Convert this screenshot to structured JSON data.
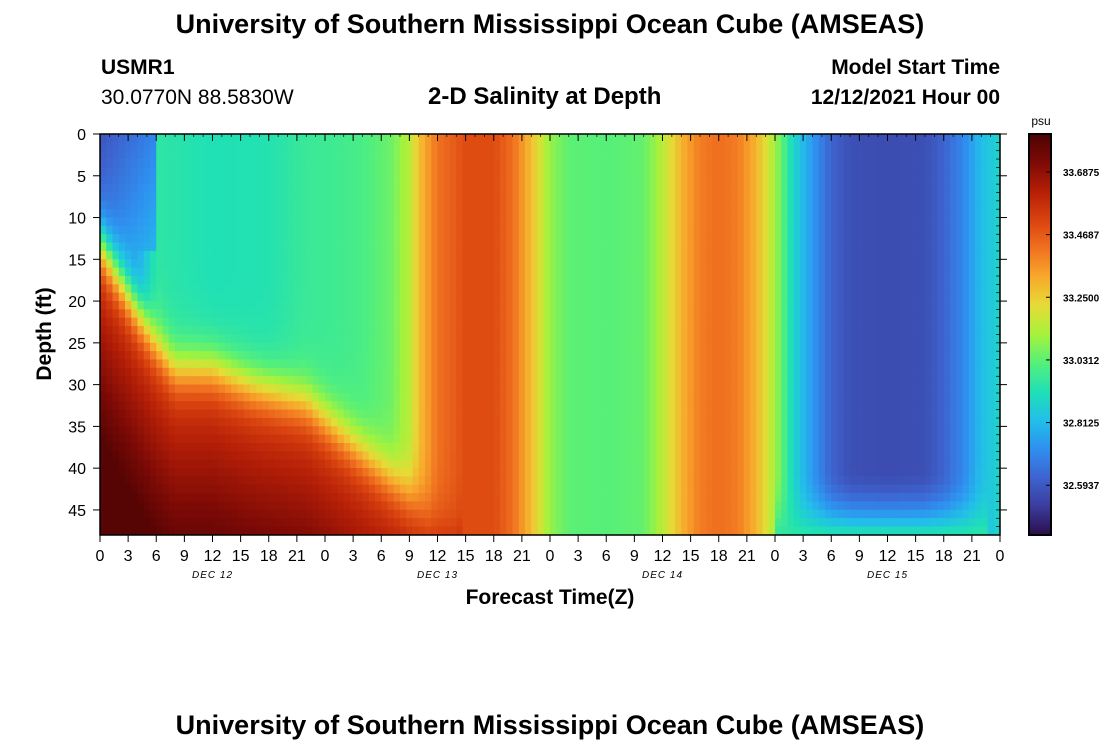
{
  "page": {
    "title": "University of Southern Mississippi Ocean Cube (AMSEAS)",
    "title_repeat": "University of Southern Mississippi Ocean Cube (AMSEAS)"
  },
  "station": {
    "id": "USMR1",
    "coords": "30.0770N  88.5830W"
  },
  "plot_title": "2-D Salinity at Depth",
  "model": {
    "label": "Model Start Time",
    "value": "12/12/2021 Hour 00"
  },
  "chart_data": {
    "type": "heatmap",
    "title": "2-D Salinity at Depth",
    "xlabel": "Forecast Time(Z)",
    "ylabel": "Depth (ft)",
    "units": "psu",
    "x_range_hours": [
      0,
      96
    ],
    "y_range_ft": [
      0,
      48
    ],
    "x_tick_labels": [
      "0",
      "3",
      "6",
      "9",
      "12",
      "15",
      "18",
      "21",
      "0",
      "3",
      "6",
      "9",
      "12",
      "15",
      "18",
      "21",
      "0",
      "3",
      "6",
      "9",
      "12",
      "15",
      "18",
      "21",
      "0",
      "3",
      "6",
      "9",
      "12",
      "15",
      "18",
      "21",
      "0"
    ],
    "y_ticks": [
      0,
      5,
      10,
      15,
      20,
      25,
      30,
      35,
      40,
      45
    ],
    "y_tick_labels": [
      "0",
      "5",
      "10",
      "15",
      "20",
      "25",
      "30",
      "35",
      "40",
      "45"
    ],
    "day_labels": [
      {
        "text": "DEC 12",
        "hour": 12
      },
      {
        "text": "DEC 13",
        "hour": 36
      },
      {
        "text": "DEC 14",
        "hour": 60
      },
      {
        "text": "DEC 15",
        "hour": 84
      }
    ],
    "colorbar": {
      "min": 32.42,
      "max": 33.82,
      "ticks": [
        33.6875,
        33.4687,
        33.25,
        33.0312,
        32.8125,
        32.5937
      ],
      "tick_labels": [
        "33.6875",
        "33.4687",
        "33.2500",
        "33.0312",
        "32.8125",
        "32.5937"
      ],
      "colors": [
        "#2a0f4a",
        "#3a3c9c",
        "#3e63cf",
        "#2f8ff0",
        "#22bfe9",
        "#1fe0b6",
        "#55f07a",
        "#a5f23c",
        "#e5dc36",
        "#f8a92c",
        "#f07220",
        "#d9420f",
        "#b51f07",
        "#7d0a06",
        "#4c0303"
      ]
    },
    "surface_salinity_by_hour": [
      [
        0,
        32.7
      ],
      [
        4,
        32.75
      ],
      [
        6,
        32.95
      ],
      [
        12,
        32.92
      ],
      [
        18,
        32.93
      ],
      [
        22,
        32.97
      ],
      [
        25,
        32.98
      ],
      [
        28,
        33.0
      ],
      [
        31,
        33.05
      ],
      [
        33,
        33.15
      ],
      [
        34,
        33.27
      ],
      [
        36,
        33.42
      ],
      [
        38,
        33.47
      ],
      [
        39,
        33.5
      ],
      [
        42,
        33.5
      ],
      [
        44,
        33.43
      ],
      [
        46,
        33.28
      ],
      [
        48,
        33.1
      ],
      [
        50,
        33.03
      ],
      [
        54,
        33.02
      ],
      [
        58,
        33.04
      ],
      [
        60,
        33.15
      ],
      [
        62,
        33.3
      ],
      [
        64,
        33.4
      ],
      [
        66,
        33.43
      ],
      [
        68,
        33.4
      ],
      [
        70,
        33.3
      ],
      [
        72,
        33.12
      ],
      [
        73,
        33.0
      ],
      [
        74,
        32.88
      ],
      [
        76,
        32.74
      ],
      [
        78,
        32.62
      ],
      [
        80,
        32.57
      ],
      [
        84,
        32.56
      ],
      [
        88,
        32.57
      ],
      [
        90,
        32.62
      ],
      [
        92,
        32.7
      ],
      [
        94,
        32.82
      ],
      [
        96,
        32.88
      ]
    ]
  }
}
